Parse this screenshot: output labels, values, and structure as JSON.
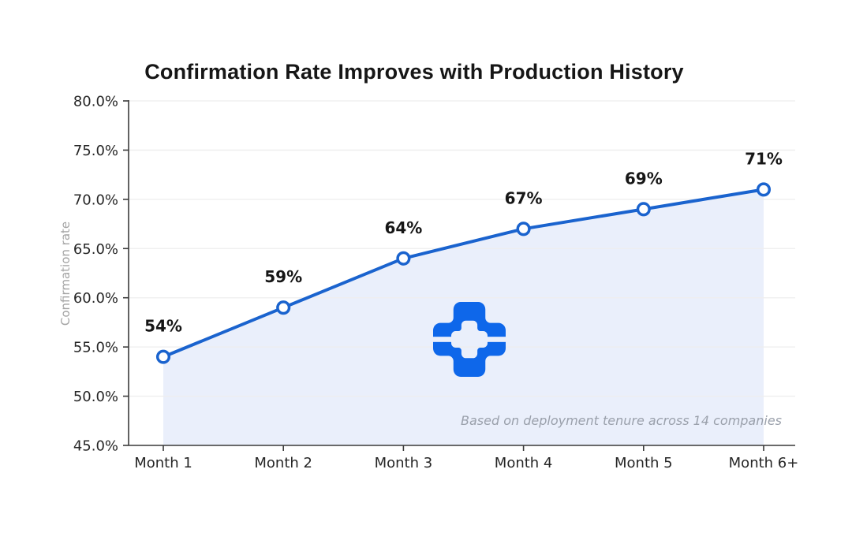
{
  "chart_data": {
    "type": "line",
    "title": "Confirmation Rate Improves with Production History",
    "ylabel": "Confirmation rate",
    "xlabel": "",
    "categories": [
      "Month 1",
      "Month 2",
      "Month 3",
      "Month 4",
      "Month 5",
      "Month 6+"
    ],
    "values": [
      54,
      59,
      64,
      67,
      69,
      71
    ],
    "point_labels": [
      "54%",
      "59%",
      "64%",
      "67%",
      "69%",
      "71%"
    ],
    "ylim": [
      45,
      80
    ],
    "yticks": [
      45,
      50,
      55,
      60,
      65,
      70,
      75,
      80
    ],
    "ytick_labels": [
      "45.0%",
      "50.0%",
      "55.0%",
      "60.0%",
      "65.0%",
      "70.0%",
      "75.0%",
      "80.0%"
    ],
    "grid": "horizontal",
    "legend": "none",
    "area_fill": true,
    "marker": "open-circle",
    "annotation": "Based on deployment tenure across 14 companies",
    "colors": {
      "line": "#1a63ce",
      "fill": "#eaeffb",
      "grid": "#eeeeee",
      "spine": "#3b3b3b",
      "tick_text": "#262626",
      "point_label_text": "#161616",
      "title_text": "#161616",
      "ylabel_text": "#a4a4a4",
      "annotation_text": "#9aa0ab",
      "logo": "#0e67ea",
      "marker_fill": "#ffffff"
    }
  }
}
